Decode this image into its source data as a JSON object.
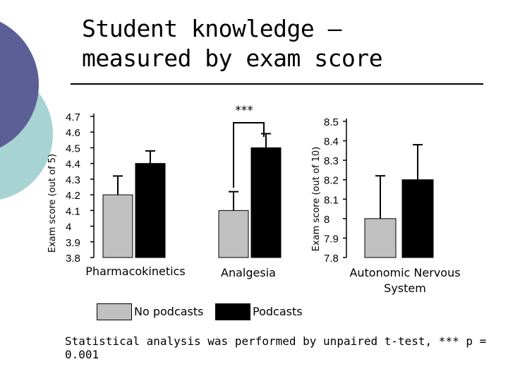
{
  "title": [
    "Student knowledge –",
    "measured by exam score"
  ],
  "footnote": "Statistical analysis was performed by unpaired t-test, *** p = 0.001",
  "colors": {
    "no_podcasts": "#c0c0c0",
    "podcasts": "#000000",
    "deco_dark": "#5c5e96",
    "deco_light": "#a7d3d3"
  },
  "legend": [
    {
      "name": "No podcasts",
      "color": "#c0c0c0"
    },
    {
      "name": "Podcasts",
      "color": "#000000"
    }
  ],
  "chart_data": [
    {
      "type": "bar",
      "ylabel": "Exam score (out of 5)",
      "ylim": [
        3.8,
        4.7
      ],
      "yticks": [
        "4.7",
        "4.6",
        "4.5",
        "4.4",
        "4.3",
        "4.2",
        "4.1",
        "4",
        "3.9",
        "3.8"
      ],
      "categories": [
        "Pharmacokinetics",
        "Analgesia"
      ],
      "series": [
        {
          "name": "No podcasts",
          "values": [
            4.2,
            4.1
          ],
          "error": [
            0.12,
            0.12
          ]
        },
        {
          "name": "Podcasts",
          "values": [
            4.4,
            4.5
          ],
          "error": [
            0.08,
            0.09
          ]
        }
      ],
      "annotation": "***"
    },
    {
      "type": "bar",
      "ylabel": "Exam score (out of 10)",
      "ylim": [
        7.8,
        8.5
      ],
      "yticks": [
        "8.5",
        "8.4",
        "8.3",
        "8.2",
        "8.1",
        "8",
        "7.9",
        "7.8"
      ],
      "categories": [
        "Autonomic Nervous System"
      ],
      "series": [
        {
          "name": "No podcasts",
          "values": [
            8.0
          ],
          "error": [
            0.22
          ]
        },
        {
          "name": "Podcasts",
          "values": [
            8.2
          ],
          "error": [
            0.18
          ]
        }
      ]
    }
  ]
}
